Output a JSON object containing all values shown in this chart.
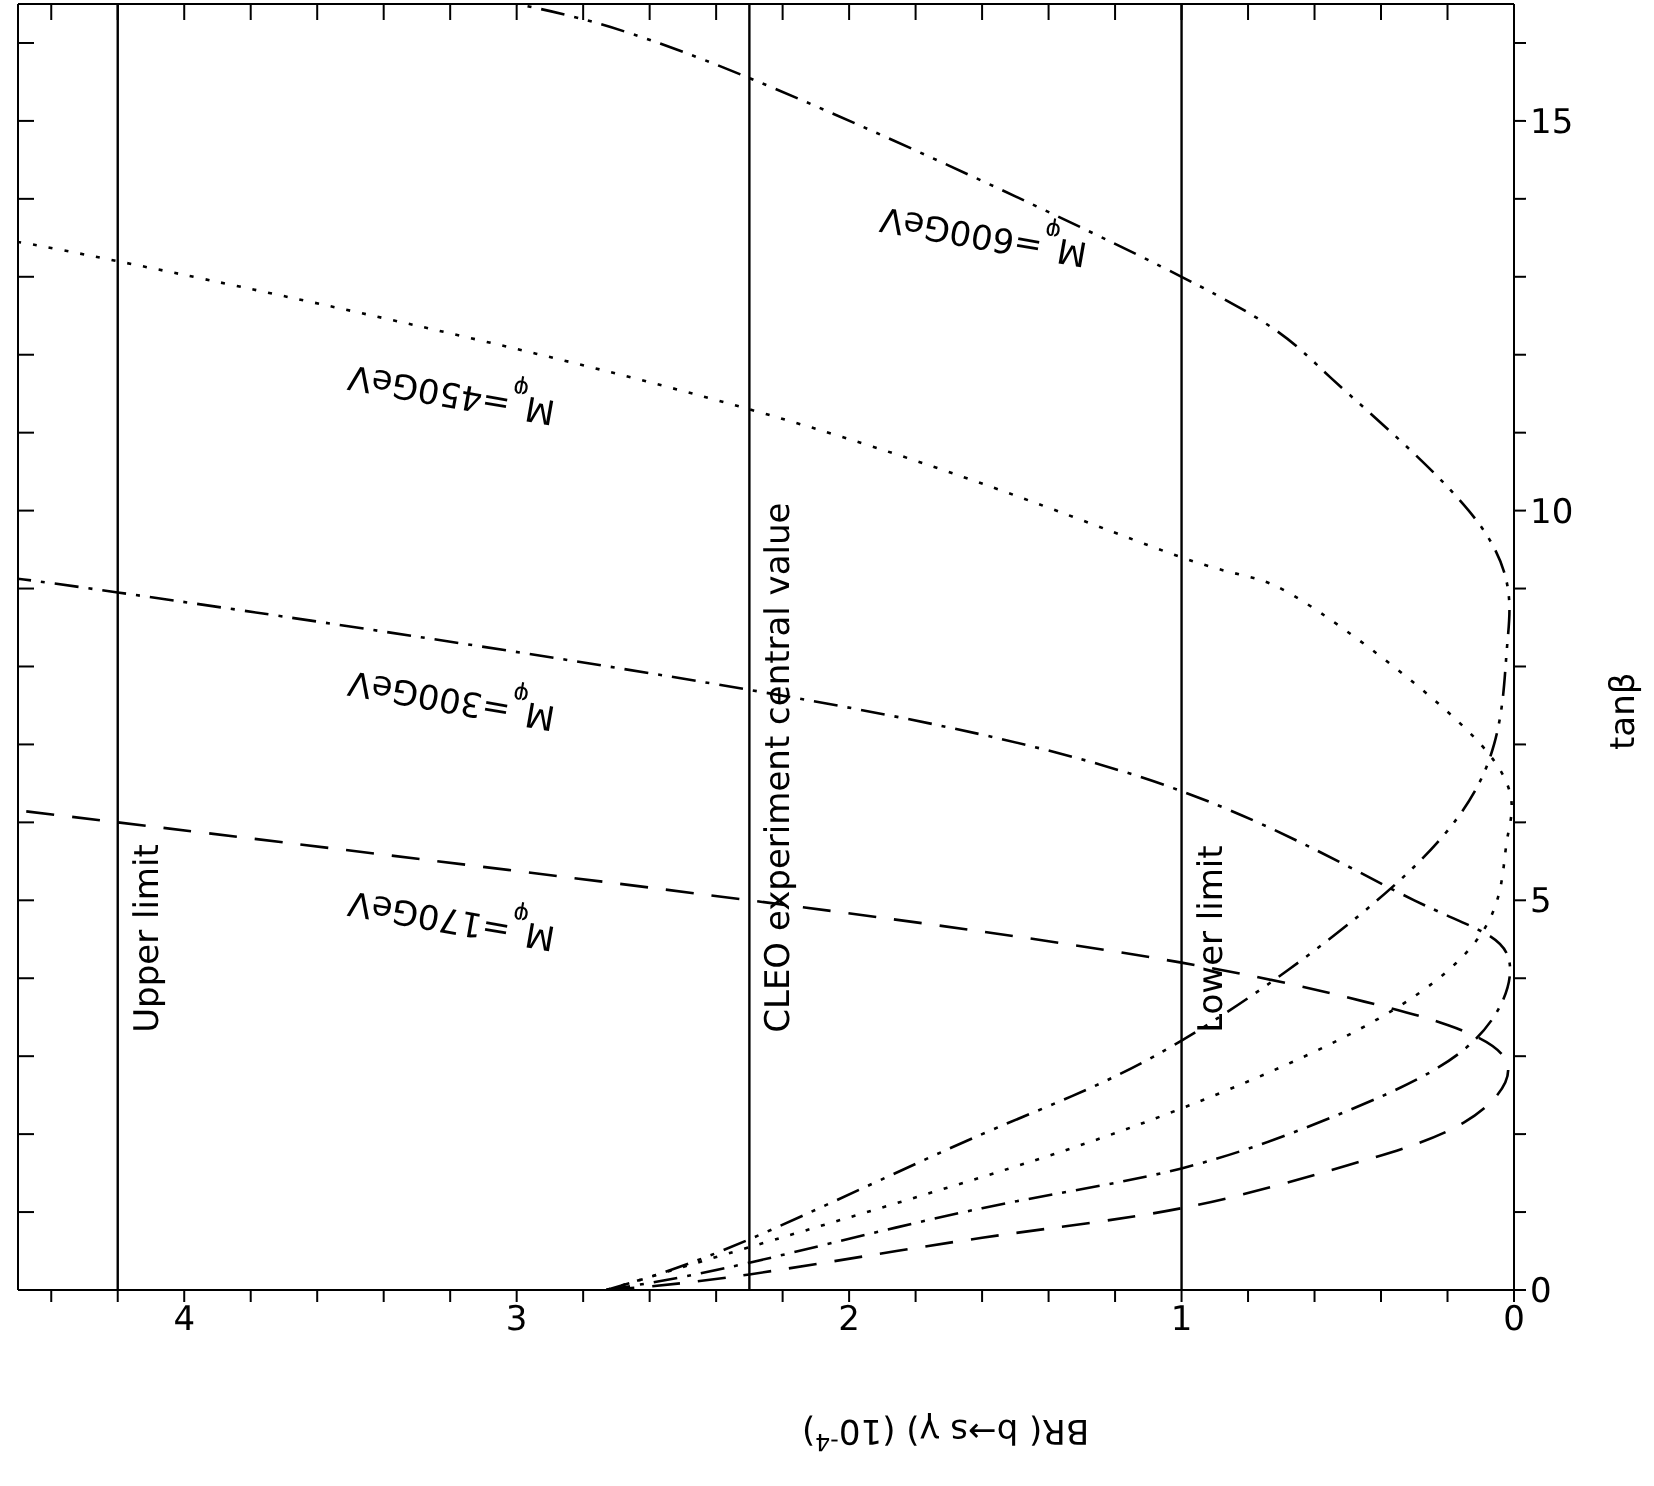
{
  "chart_data": {
    "type": "line",
    "xlabel": "BR( b→s γ) (10$^{-4}$)",
    "ylabel": "tanβ",
    "xlim": [
      4.5,
      0
    ],
    "ylim": [
      0,
      16.5
    ],
    "xticks": [
      0,
      {
        "value": 0.2,
        "label": null
      },
      {
        "value": 0.4,
        "label": null
      },
      {
        "value": 0.6,
        "label": null
      },
      {
        "value": 0.8,
        "label": null
      },
      1,
      {
        "value": 1.2,
        "label": null
      },
      {
        "value": 1.4,
        "label": null
      },
      {
        "value": 1.6,
        "label": null
      },
      {
        "value": 1.8,
        "label": null
      },
      2,
      {
        "value": 2.2,
        "label": null
      },
      {
        "value": 2.4,
        "label": null
      },
      {
        "value": 2.6,
        "label": null
      },
      {
        "value": 2.8,
        "label": null
      },
      3,
      {
        "value": 3.2,
        "label": null
      },
      {
        "value": 3.4,
        "label": null
      },
      {
        "value": 3.6,
        "label": null
      },
      {
        "value": 3.8,
        "label": null
      },
      4,
      {
        "value": 4.2,
        "label": null
      },
      {
        "value": 4.4,
        "label": null
      }
    ],
    "yticks": [
      0,
      {
        "value": 1,
        "label": null
      },
      {
        "value": 2,
        "label": null
      },
      {
        "value": 3,
        "label": null
      },
      {
        "value": 4,
        "label": null
      },
      5,
      {
        "value": 6,
        "label": null
      },
      {
        "value": 7,
        "label": null
      },
      {
        "value": 8,
        "label": null
      },
      {
        "value": 9,
        "label": null
      },
      10,
      {
        "value": 11,
        "label": null
      },
      {
        "value": 12,
        "label": null
      },
      {
        "value": 13,
        "label": null
      },
      {
        "value": 14,
        "label": null
      },
      15,
      {
        "value": 16,
        "label": null
      }
    ],
    "marker": "none",
    "series": [
      {
        "name": "M$_{φ}$=170GeV",
        "color": "#000000",
        "line_style": "dashed",
        "x": [
          2.73,
          2.3,
          1.6,
          1.0,
          0.5,
          0.15,
          0.02,
          0.2,
          0.45,
          1.0,
          2.3,
          4.2,
          4.5
        ],
        "values": [
          0,
          0.2,
          0.67,
          1.05,
          1.6,
          2.15,
          2.9,
          3.4,
          3.7,
          4.2,
          5.0,
          6.0,
          6.15
        ]
      },
      {
        "name": "M$_{φ}$=300GeV",
        "color": "#000000",
        "line_style": "dashdot",
        "x": [
          2.73,
          2.3,
          1.6,
          1.0,
          0.5,
          0.12,
          0.02,
          0.3,
          1.0,
          2.3,
          4.2,
          4.5
        ],
        "values": [
          0,
          0.35,
          1.05,
          1.56,
          2.3,
          3.2,
          4.3,
          5.0,
          6.4,
          7.7,
          8.95,
          9.1
        ]
      },
      {
        "name": "M$_{φ}$=450GeV",
        "color": "#000000",
        "line_style": "dotted",
        "x": [
          2.73,
          2.3,
          1.6,
          1.0,
          0.4,
          0.08,
          0.02,
          0.1,
          0.64,
          1.0,
          2.3,
          4.2,
          4.5
        ],
        "values": [
          0,
          0.55,
          1.45,
          2.33,
          3.5,
          4.7,
          5.8,
          7.0,
          8.85,
          9.4,
          11.3,
          13.2,
          13.4
        ]
      },
      {
        "name": "M$_{φ}$=600GeV",
        "color": "#000000",
        "line_style": "dashdotdot",
        "x": [
          2.73,
          2.3,
          1.6,
          1.0,
          0.32,
          0.06,
          0.02,
          0.1,
          0.55,
          1.0,
          2.3,
          3.0
        ],
        "values": [
          0,
          0.65,
          2.0,
          3.2,
          5.35,
          7.0,
          8.3,
          9.8,
          11.7,
          13.0,
          15.55,
          16.5
        ]
      }
    ],
    "ref_lines": [
      {
        "axis": "x",
        "value": 4.2,
        "label": "Upper limit",
        "color": "#000000"
      },
      {
        "axis": "x",
        "value": 2.3,
        "label": "CLEO experiment central value",
        "color": "#000000"
      },
      {
        "axis": "x",
        "value": 1.0,
        "label": "Lower limit",
        "color": "#000000"
      }
    ]
  }
}
